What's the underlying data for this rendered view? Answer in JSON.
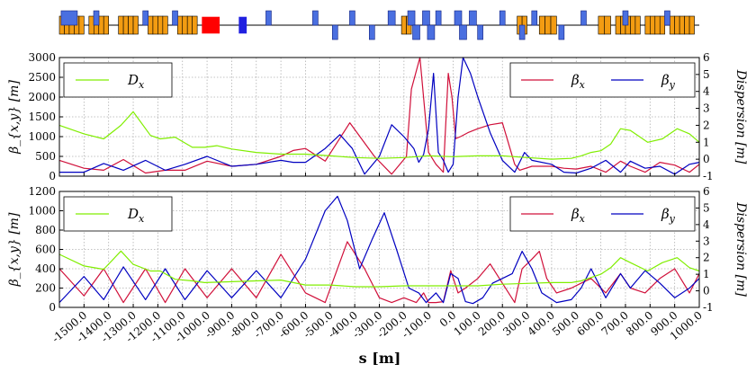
{
  "chart_data": [
    {
      "type": "line",
      "title": "",
      "xlabel": "s [m]",
      "ylabel_left": "β_{x,y} [m]",
      "ylabel_right": "Dispersion [m]",
      "xlim": [
        -1600,
        1000
      ],
      "ylim_left": [
        0,
        3000
      ],
      "ylim_right": [
        -1,
        6
      ],
      "yticks_left": [
        0,
        500,
        1000,
        1500,
        2000,
        2500,
        3000
      ],
      "yticks_right": [
        -1,
        0,
        1,
        2,
        3,
        4,
        5,
        6
      ],
      "grid": true,
      "legend_left": {
        "placement": "top-left",
        "entries": [
          {
            "name": "D_x",
            "label": "D",
            "sub": "x",
            "color": "#80ee00"
          }
        ]
      },
      "legend_right": {
        "placement": "top-right",
        "entries": [
          {
            "name": "beta_x",
            "label": "β",
            "sub": "x",
            "color": "#d0103a"
          },
          {
            "name": "beta_y",
            "label": "β",
            "sub": "y",
            "color": "#0000c0"
          }
        ]
      },
      "series": [
        {
          "name": "beta_x",
          "axis": "left",
          "color": "#d0103a",
          "x": [
            -1600,
            -1500,
            -1420,
            -1340,
            -1250,
            -1170,
            -1090,
            -1000,
            -900,
            -800,
            -700,
            -650,
            -600,
            -520,
            -420,
            -320,
            -250,
            -190,
            -170,
            -135,
            -100,
            -70,
            -40,
            -20,
            -5,
            10,
            30,
            60,
            100,
            150,
            200,
            250,
            270,
            320,
            400,
            450,
            500,
            560,
            620,
            680,
            720,
            780,
            840,
            900,
            960,
            1000
          ],
          "y": [
            400,
            200,
            150,
            420,
            80,
            150,
            150,
            380,
            250,
            300,
            500,
            650,
            700,
            380,
            1350,
            500,
            50,
            500,
            2200,
            3000,
            600,
            300,
            100,
            2600,
            2000,
            950,
            1000,
            1100,
            1200,
            1300,
            1350,
            300,
            150,
            250,
            250,
            200,
            180,
            250,
            100,
            380,
            250,
            100,
            350,
            280,
            100,
            300
          ]
        },
        {
          "name": "beta_y",
          "axis": "left",
          "color": "#0000c0",
          "x": [
            -1600,
            -1500,
            -1420,
            -1340,
            -1250,
            -1170,
            -1090,
            -1000,
            -900,
            -800,
            -700,
            -650,
            -600,
            -520,
            -460,
            -410,
            -360,
            -300,
            -250,
            -200,
            -160,
            -140,
            -120,
            -100,
            -80,
            -60,
            -40,
            -20,
            0,
            20,
            40,
            70,
            100,
            150,
            200,
            250,
            290,
            320,
            400,
            450,
            500,
            560,
            620,
            680,
            720,
            780,
            840,
            900,
            960,
            1000
          ],
          "y": [
            100,
            100,
            320,
            150,
            400,
            150,
            300,
            500,
            250,
            300,
            400,
            350,
            350,
            700,
            1050,
            700,
            50,
            500,
            1300,
            1000,
            700,
            350,
            550,
            1200,
            2600,
            600,
            400,
            100,
            300,
            2000,
            3000,
            2600,
            2000,
            1100,
            400,
            100,
            600,
            400,
            300,
            100,
            80,
            200,
            400,
            100,
            380,
            200,
            250,
            50,
            300,
            350
          ]
        },
        {
          "name": "D_x",
          "axis": "right",
          "color": "#80ee00",
          "x": [
            -1600,
            -1500,
            -1420,
            -1350,
            -1300,
            -1230,
            -1190,
            -1130,
            -1060,
            -1010,
            -960,
            -900,
            -800,
            -700,
            -600,
            -500,
            -400,
            -300,
            -200,
            -100,
            0,
            100,
            200,
            300,
            400,
            480,
            520,
            560,
            600,
            640,
            680,
            720,
            790,
            850,
            910,
            960,
            1000
          ],
          "y": [
            2.0,
            1.5,
            1.2,
            2.0,
            2.8,
            1.4,
            1.2,
            1.3,
            0.7,
            0.7,
            0.8,
            0.6,
            0.4,
            0.3,
            0.3,
            0.2,
            0.1,
            0.05,
            0.1,
            0.2,
            0.15,
            0.2,
            0.2,
            0.1,
            0.0,
            0.05,
            0.2,
            0.4,
            0.5,
            0.9,
            1.8,
            1.7,
            1.0,
            1.2,
            1.8,
            1.5,
            1.0
          ]
        }
      ]
    },
    {
      "type": "line",
      "title": "",
      "xlabel": "s [m]",
      "ylabel_left": "β_{x,y} [m]",
      "ylabel_right": "Dispersion [m]",
      "xlim": [
        -1600,
        1000
      ],
      "ylim_left": [
        0,
        1200
      ],
      "ylim_right": [
        -1,
        6
      ],
      "yticks_left": [
        0,
        200,
        400,
        600,
        800,
        1000,
        1200
      ],
      "yticks_right": [
        -1,
        0,
        1,
        2,
        3,
        4,
        5,
        6
      ],
      "xticks": [
        -1500,
        -1400,
        -1300,
        -1200,
        -1100,
        -1000,
        -900,
        -800,
        -700,
        -600,
        -500,
        -400,
        -300,
        -200,
        -100,
        0,
        100,
        200,
        300,
        400,
        500,
        600,
        700,
        800,
        900,
        1000
      ],
      "xtick_labels": [
        "-1500.0",
        "-1400.0",
        "-1300.0",
        "-1200.0",
        "-1100.0",
        "-1000.0",
        "-900.0",
        "-800.0",
        "-700.0",
        "-600.0",
        "-500.0",
        "-400.0",
        "-300.0",
        "-200.0",
        "-100.0",
        "0.0",
        "100.0",
        "200.0",
        "300.0",
        "400.0",
        "500.0",
        "600.0",
        "700.0",
        "800.0",
        "900.0",
        "1000.0"
      ],
      "grid": true,
      "legend_left": {
        "placement": "top-left",
        "entries": [
          {
            "name": "D_x",
            "label": "D",
            "sub": "x",
            "color": "#80ee00"
          }
        ]
      },
      "legend_right": {
        "placement": "top-right",
        "entries": [
          {
            "name": "beta_x",
            "label": "β",
            "sub": "x",
            "color": "#d0103a"
          },
          {
            "name": "beta_y",
            "label": "β",
            "sub": "y",
            "color": "#0000c0"
          }
        ]
      },
      "series": [
        {
          "name": "beta_x",
          "axis": "left",
          "color": "#d0103a",
          "x": [
            -1600,
            -1500,
            -1420,
            -1340,
            -1250,
            -1170,
            -1090,
            -1000,
            -900,
            -800,
            -700,
            -600,
            -520,
            -430,
            -360,
            -300,
            -250,
            -200,
            -150,
            -120,
            -100,
            -70,
            -40,
            -10,
            20,
            50,
            100,
            150,
            200,
            250,
            280,
            320,
            350,
            380,
            420,
            480,
            520,
            560,
            620,
            680,
            720,
            780,
            840,
            900,
            960,
            1000
          ],
          "y": [
            400,
            120,
            400,
            50,
            400,
            50,
            400,
            100,
            400,
            100,
            550,
            150,
            50,
            680,
            400,
            100,
            50,
            100,
            50,
            150,
            50,
            50,
            60,
            380,
            150,
            200,
            300,
            450,
            250,
            50,
            400,
            500,
            580,
            300,
            150,
            200,
            250,
            300,
            150,
            350,
            200,
            150,
            300,
            400,
            150,
            350
          ]
        },
        {
          "name": "beta_y",
          "axis": "left",
          "color": "#0000c0",
          "x": [
            -1600,
            -1500,
            -1420,
            -1340,
            -1250,
            -1170,
            -1090,
            -1000,
            -900,
            -800,
            -700,
            -600,
            -520,
            -470,
            -430,
            -380,
            -330,
            -280,
            -230,
            -180,
            -140,
            -110,
            -90,
            -70,
            -40,
            -10,
            20,
            50,
            80,
            120,
            160,
            200,
            240,
            280,
            320,
            360,
            420,
            480,
            520,
            560,
            620,
            680,
            720,
            780,
            840,
            900,
            960,
            1000
          ],
          "y": [
            50,
            320,
            80,
            420,
            80,
            400,
            80,
            380,
            100,
            380,
            100,
            500,
            1000,
            1150,
            900,
            400,
            700,
            980,
            600,
            200,
            150,
            50,
            100,
            150,
            50,
            350,
            300,
            60,
            40,
            100,
            250,
            300,
            350,
            580,
            400,
            150,
            50,
            80,
            200,
            400,
            100,
            350,
            200,
            380,
            250,
            100,
            200,
            300
          ]
        },
        {
          "name": "D_x",
          "axis": "right",
          "color": "#80ee00",
          "x": [
            -1600,
            -1500,
            -1420,
            -1350,
            -1300,
            -1230,
            -1190,
            -1130,
            -1060,
            -1010,
            -900,
            -800,
            -700,
            -600,
            -500,
            -400,
            -300,
            -200,
            -100,
            0,
            100,
            200,
            300,
            400,
            480,
            520,
            560,
            600,
            640,
            680,
            720,
            790,
            850,
            910,
            960,
            1000
          ],
          "y": [
            2.2,
            1.5,
            1.3,
            2.4,
            1.6,
            1.2,
            1.2,
            0.7,
            0.6,
            0.5,
            0.55,
            0.6,
            0.65,
            0.35,
            0.35,
            0.25,
            0.25,
            0.3,
            0.3,
            0.3,
            0.3,
            0.4,
            0.45,
            0.5,
            0.5,
            0.6,
            0.8,
            1.0,
            1.4,
            2.0,
            1.7,
            1.2,
            1.7,
            2.0,
            1.4,
            1.2
          ]
        }
      ]
    }
  ],
  "lattice": {
    "xlim": [
      -1600,
      1000
    ],
    "elements": [
      {
        "x": -1560,
        "w": 18,
        "type": "quad-f"
      },
      {
        "x": -1450,
        "w": 6,
        "type": "quad-f"
      },
      {
        "x": -1250,
        "w": 6,
        "type": "quad-f"
      },
      {
        "x": -1130,
        "w": 6,
        "type": "quad-f"
      },
      {
        "x": -750,
        "w": 6,
        "type": "quad-f"
      },
      {
        "x": -560,
        "w": 6,
        "type": "quad-f"
      },
      {
        "x": -480,
        "w": 6,
        "type": "quad-d"
      },
      {
        "x": -410,
        "w": 6,
        "type": "quad-f"
      },
      {
        "x": -330,
        "w": 6,
        "type": "quad-d"
      },
      {
        "x": -250,
        "w": 8,
        "type": "quad-f"
      },
      {
        "x": -170,
        "w": 8,
        "type": "quad-f"
      },
      {
        "x": -150,
        "w": 8,
        "type": "quad-d"
      },
      {
        "x": -110,
        "w": 8,
        "type": "quad-f"
      },
      {
        "x": -90,
        "w": 8,
        "type": "quad-d"
      },
      {
        "x": -60,
        "w": 6,
        "type": "quad-f"
      },
      {
        "x": 20,
        "w": 8,
        "type": "quad-f"
      },
      {
        "x": 40,
        "w": 8,
        "type": "quad-d"
      },
      {
        "x": 80,
        "w": 8,
        "type": "quad-f"
      },
      {
        "x": 110,
        "w": 6,
        "type": "quad-d"
      },
      {
        "x": 200,
        "w": 6,
        "type": "quad-f"
      },
      {
        "x": 280,
        "w": 6,
        "type": "quad-d"
      },
      {
        "x": 330,
        "w": 6,
        "type": "quad-f"
      },
      {
        "x": 440,
        "w": 6,
        "type": "quad-d"
      },
      {
        "x": 530,
        "w": 6,
        "type": "quad-f"
      },
      {
        "x": 700,
        "w": 6,
        "type": "quad-f"
      },
      {
        "x": 870,
        "w": 6,
        "type": "quad-f"
      }
    ],
    "dipole_groups": [
      {
        "x0": -1600,
        "x1": -1500
      },
      {
        "x0": -1480,
        "x1": -1400
      },
      {
        "x0": -1360,
        "x1": -1280
      },
      {
        "x0": -1240,
        "x1": -1160
      },
      {
        "x0": -1120,
        "x1": -1040
      },
      {
        "x0": -210,
        "x1": -170
      },
      {
        "x0": 260,
        "x1": 300
      },
      {
        "x0": 350,
        "x1": 420
      },
      {
        "x0": 590,
        "x1": 640
      },
      {
        "x0": 660,
        "x1": 760
      },
      {
        "x0": 780,
        "x1": 860
      },
      {
        "x0": 880,
        "x1": 980
      }
    ],
    "special": [
      {
        "x0": -1020,
        "x1": -950,
        "color": "#ff0000"
      },
      {
        "x0": -870,
        "x1": -840,
        "color": "#2020e0"
      }
    ]
  }
}
